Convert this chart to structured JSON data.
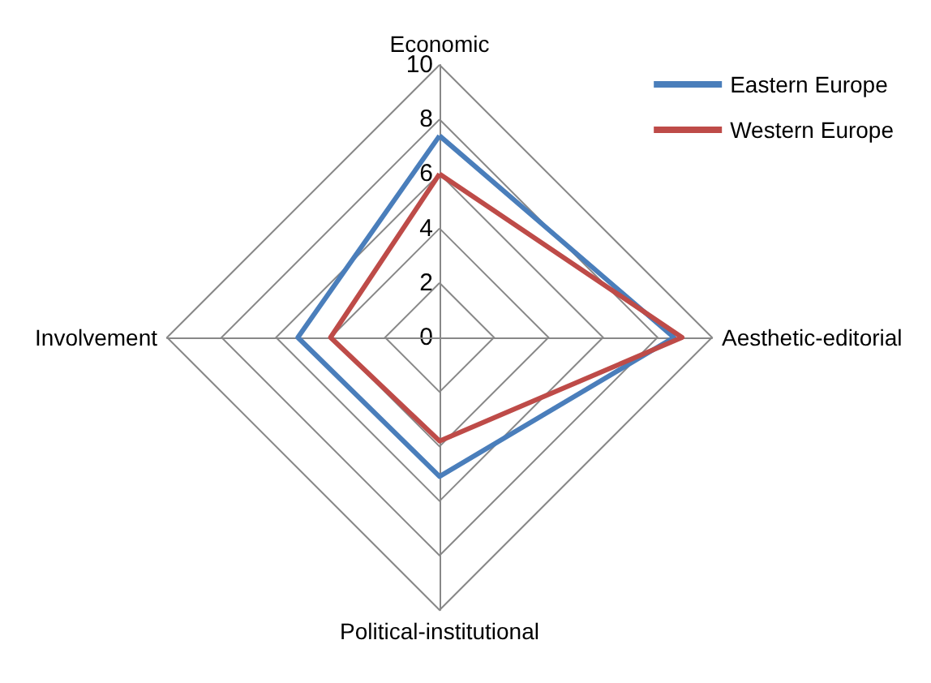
{
  "chart_data": {
    "type": "radar",
    "categories": [
      "Economic",
      "Aesthetic-editorial",
      "Political-institutional",
      "Involvement"
    ],
    "series": [
      {
        "name": "Eastern Europe",
        "color": "#4a7ebb",
        "values": [
          7.4,
          8.6,
          5.1,
          5.2
        ]
      },
      {
        "name": "Western Europe",
        "color": "#be4b48",
        "values": [
          6.0,
          8.9,
          3.8,
          4.0
        ]
      }
    ],
    "ylim": [
      0,
      10
    ],
    "yticks": [
      0,
      2,
      4,
      6,
      8,
      10
    ],
    "grid": true,
    "legend": "top right",
    "marker": "none",
    "line_style": "solid"
  }
}
